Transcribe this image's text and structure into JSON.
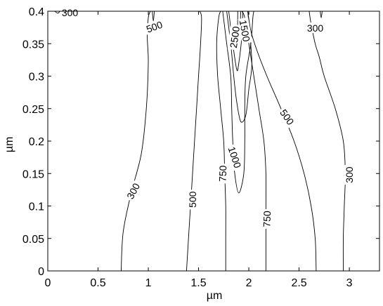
{
  "chart_data": {
    "type": "contour",
    "xlabel": "µm",
    "ylabel": "µm",
    "xlim": [
      0,
      3.3
    ],
    "ylim": [
      0,
      0.4
    ],
    "x_ticks": [
      0,
      0.5,
      1,
      1.5,
      2,
      2.5,
      3
    ],
    "x_tick_labels": [
      "0",
      "0.5",
      "1",
      "1.5",
      "2",
      "2.5",
      "3"
    ],
    "y_ticks": [
      0,
      0.05,
      0.1,
      0.15,
      0.2,
      0.25,
      0.3,
      0.35,
      0.4
    ],
    "y_tick_labels": [
      "0",
      "0.05",
      "0.1",
      "0.15",
      "0.2",
      "0.25",
      "0.3",
      "0.35",
      "0.4"
    ],
    "grid": false,
    "colors": {
      "line": "#000000",
      "background": "#ffffff"
    },
    "contours": [
      {
        "level": "300",
        "points": [
          [
            0.73,
            0
          ],
          [
            0.75,
            0.06
          ],
          [
            0.83,
            0.12
          ],
          [
            0.93,
            0.18
          ],
          [
            0.98,
            0.25
          ],
          [
            1.0,
            0.32
          ],
          [
            0.99,
            0.36
          ],
          [
            1.0,
            0.39
          ],
          [
            1.02,
            0.4
          ]
        ]
      },
      {
        "level": "300",
        "points": [
          [
            0.07,
            0.4
          ],
          [
            0.1,
            0.397
          ],
          [
            0.12,
            0.4
          ]
        ]
      },
      {
        "level": "500",
        "points": [
          [
            1.04,
            0.4
          ],
          [
            1.05,
            0.385
          ],
          [
            1.06,
            0.4
          ]
        ]
      },
      {
        "level": "500",
        "points": [
          [
            1.38,
            0
          ],
          [
            1.4,
            0.05
          ],
          [
            1.42,
            0.1
          ],
          [
            1.44,
            0.15
          ],
          [
            1.46,
            0.2
          ],
          [
            1.48,
            0.25
          ],
          [
            1.5,
            0.3
          ],
          [
            1.52,
            0.35
          ],
          [
            1.53,
            0.39
          ],
          [
            1.51,
            0.4
          ]
        ]
      },
      {
        "level": "750",
        "points": [
          [
            1.77,
            0
          ],
          [
            1.77,
            0.05
          ],
          [
            1.77,
            0.1
          ],
          [
            1.76,
            0.15
          ],
          [
            1.75,
            0.2
          ],
          [
            1.72,
            0.25
          ],
          [
            1.69,
            0.3
          ],
          [
            1.68,
            0.35
          ],
          [
            1.7,
            0.39
          ],
          [
            1.72,
            0.4
          ]
        ]
      },
      {
        "level": "1000",
        "points": [
          [
            1.74,
            0.4
          ],
          [
            1.78,
            0.35
          ],
          [
            1.82,
            0.3
          ],
          [
            1.83,
            0.25
          ],
          [
            1.84,
            0.2
          ],
          [
            1.86,
            0.15
          ],
          [
            1.9,
            0.12
          ],
          [
            1.95,
            0.15
          ],
          [
            1.96,
            0.2
          ],
          [
            1.96,
            0.25
          ],
          [
            1.97,
            0.3
          ],
          [
            2.02,
            0.35
          ],
          [
            2.04,
            0.39
          ],
          [
            2.05,
            0.4
          ]
        ]
      },
      {
        "level": "1500",
        "points": [
          [
            1.78,
            0.4
          ],
          [
            1.82,
            0.35
          ],
          [
            1.85,
            0.3
          ],
          [
            1.88,
            0.26
          ],
          [
            1.92,
            0.23
          ],
          [
            1.97,
            0.24
          ],
          [
            2.0,
            0.28
          ],
          [
            2.03,
            0.32
          ],
          [
            2.0,
            0.38
          ],
          [
            1.99,
            0.4
          ]
        ]
      },
      {
        "level": "2500",
        "points": [
          [
            1.8,
            0.4
          ],
          [
            1.84,
            0.35
          ],
          [
            1.88,
            0.31
          ],
          [
            1.9,
            0.32
          ],
          [
            1.93,
            0.36
          ],
          [
            1.94,
            0.4
          ]
        ]
      },
      {
        "level": "2500",
        "points": [
          [
            1.89,
            0.4
          ],
          [
            1.89,
            0.36
          ],
          [
            1.91,
            0.37
          ],
          [
            1.92,
            0.4
          ]
        ]
      },
      {
        "level": "750",
        "points": [
          [
            2.17,
            0
          ],
          [
            2.17,
            0.05
          ],
          [
            2.17,
            0.1
          ],
          [
            2.17,
            0.15
          ],
          [
            2.15,
            0.2
          ],
          [
            2.1,
            0.25
          ],
          [
            2.05,
            0.3
          ],
          [
            2.0,
            0.35
          ],
          [
            1.96,
            0.39
          ],
          [
            1.93,
            0.4
          ]
        ]
      },
      {
        "level": "500",
        "points": [
          [
            2.67,
            0
          ],
          [
            2.66,
            0.05
          ],
          [
            2.62,
            0.1
          ],
          [
            2.55,
            0.15
          ],
          [
            2.45,
            0.2
          ],
          [
            2.32,
            0.25
          ],
          [
            2.18,
            0.3
          ],
          [
            2.08,
            0.34
          ],
          [
            2.02,
            0.37
          ],
          [
            1.99,
            0.4
          ]
        ]
      },
      {
        "level": "300",
        "points": [
          [
            2.94,
            0
          ],
          [
            2.94,
            0.05
          ],
          [
            2.95,
            0.1
          ],
          [
            2.96,
            0.15
          ],
          [
            2.94,
            0.2
          ],
          [
            2.86,
            0.25
          ],
          [
            2.75,
            0.3
          ],
          [
            2.7,
            0.33
          ],
          [
            2.66,
            0.35
          ],
          [
            2.62,
            0.38
          ],
          [
            2.6,
            0.4
          ]
        ]
      },
      {
        "level": "300",
        "points": [
          [
            2.73,
            0.4
          ],
          [
            2.72,
            0.39
          ],
          [
            2.71,
            0.4
          ]
        ]
      }
    ],
    "contour_labels": [
      {
        "text": "300",
        "x": 0.22,
        "y": 0.398,
        "rot": 0
      },
      {
        "text": "500",
        "x": 1.06,
        "y": 0.376,
        "rot": -20
      },
      {
        "text": "300",
        "x": 0.85,
        "y": 0.123,
        "rot": -62
      },
      {
        "text": "500",
        "x": 1.44,
        "y": 0.11,
        "rot": -90
      },
      {
        "text": "750",
        "x": 1.74,
        "y": 0.15,
        "rot": -88
      },
      {
        "text": "1000",
        "x": 1.86,
        "y": 0.175,
        "rot": 72
      },
      {
        "text": "1500",
        "x": 1.96,
        "y": 0.37,
        "rot": 80
      },
      {
        "text": "2500",
        "x": 1.86,
        "y": 0.36,
        "rot": -82
      },
      {
        "text": "750",
        "x": 2.18,
        "y": 0.08,
        "rot": -88
      },
      {
        "text": "500",
        "x": 2.38,
        "y": 0.237,
        "rot": 55
      },
      {
        "text": "300",
        "x": 2.66,
        "y": 0.374,
        "rot": 0
      },
      {
        "text": "300",
        "x": 3.0,
        "y": 0.148,
        "rot": -90
      }
    ]
  }
}
